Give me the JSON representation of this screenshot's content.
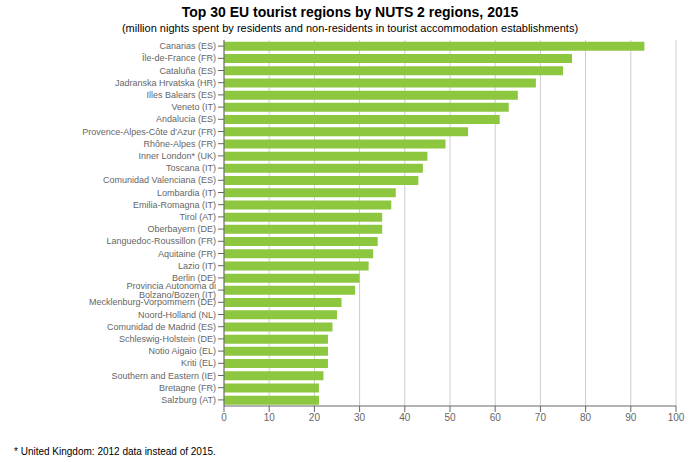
{
  "chart_data": {
    "type": "bar",
    "orientation": "horizontal",
    "title": "Top 30 EU tourist regions by NUTS 2 regions, 2015",
    "subtitle": "(million nights spent by residents and non-residents in tourist accommodation establishments)",
    "annotations": [
      "* United Kingdom: 2012 data instead of 2015."
    ],
    "categories": [
      "Canarias (ES)",
      "Île-de-France (FR)",
      "Cataluña (ES)",
      "Jadranska Hrvatska (HR)",
      "Illes Balears (ES)",
      "Veneto (IT)",
      "Andalucia (ES)",
      "Provence-Alpes-Côte d'Azur (FR)",
      "Rhône-Alpes (FR)",
      "Inner London* (UK)",
      "Toscana (IT)",
      "Comunidad Valenciana (ES)",
      "Lombardia (IT)",
      "Emilia-Romagna (IT)",
      "Tirol (AT)",
      "Oberbayern (DE)",
      "Languedoc-Roussillon (FR)",
      "Aquitaine (FR)",
      "Lazio (IT)",
      "Berlin (DE)",
      "Provincia Autonoma di Bolzano/Bozen (IT)",
      "Mecklenburg-Vorpommern (DE)",
      "Noord-Holland (NL)",
      "Comunidad de Madrid (ES)",
      "Schleswig-Holstein (DE)",
      "Notio Aigaio (EL)",
      "Kriti (EL)",
      "Southern and Eastern (IE)",
      "Bretagne (FR)",
      "Salzburg (AT)"
    ],
    "values": [
      93,
      77,
      75,
      69,
      65,
      63,
      61,
      54,
      49,
      45,
      44,
      43,
      38,
      37,
      35,
      35,
      34,
      33,
      32,
      30,
      29,
      26,
      25,
      24,
      23,
      23,
      23,
      22,
      21,
      21
    ],
    "color": "#8DC63F",
    "xlim": [
      0,
      100
    ],
    "xticks": [
      0,
      10,
      20,
      30,
      40,
      50,
      60,
      70,
      80,
      90,
      100
    ],
    "grid": true
  }
}
